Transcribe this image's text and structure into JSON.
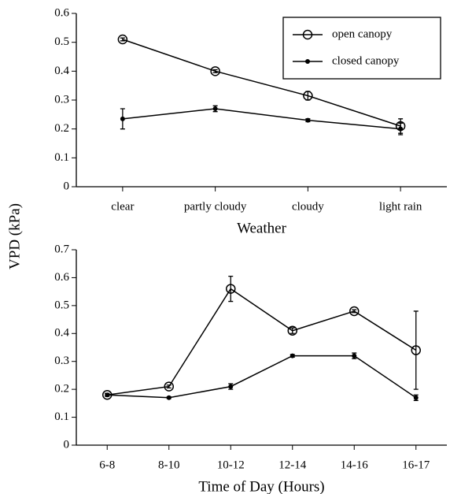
{
  "chart_data": [
    {
      "type": "line",
      "ylabel": "VPD (kPa)",
      "xlabel": "Weather",
      "categories": [
        "clear",
        "partly cloudy",
        "cloudy",
        "light rain"
      ],
      "ylim": [
        0,
        0.6
      ],
      "yticks": [
        0,
        0.1,
        0.2,
        0.3,
        0.4,
        0.5,
        0.6
      ],
      "legend": "upper right",
      "series": [
        {
          "name": "open canopy",
          "color": "#000000",
          "marker": "open-circle",
          "values": [
            0.51,
            0.4,
            0.315,
            0.21
          ],
          "errors": [
            0.005,
            0.005,
            0.015,
            0.025
          ]
        },
        {
          "name": "closed canopy",
          "color": "#000000",
          "marker": "dot",
          "values": [
            0.235,
            0.27,
            0.23,
            0.2
          ],
          "errors": [
            0.035,
            0.01,
            0.005,
            0.02
          ]
        }
      ]
    },
    {
      "type": "line",
      "xlabel": "Time of Day (Hours)",
      "categories": [
        "6-8",
        "8-10",
        "10-12",
        "12-14",
        "14-16",
        "16-17"
      ],
      "ylim": [
        0,
        0.7
      ],
      "yticks": [
        0,
        0.1,
        0.2,
        0.3,
        0.4,
        0.5,
        0.6,
        0.7
      ],
      "series": [
        {
          "color": "#000000",
          "marker": "open-circle",
          "values": [
            0.18,
            0.21,
            0.56,
            0.41,
            0.48,
            0.34
          ],
          "errors": [
            0.005,
            0.005,
            0.045,
            0.01,
            0.005,
            0.14
          ]
        },
        {
          "color": "#000000",
          "marker": "dot",
          "values": [
            0.18,
            0.17,
            0.21,
            0.32,
            0.32,
            0.17
          ],
          "errors": [
            0.005,
            0.003,
            0.01,
            0.005,
            0.01,
            0.01
          ]
        }
      ]
    }
  ]
}
